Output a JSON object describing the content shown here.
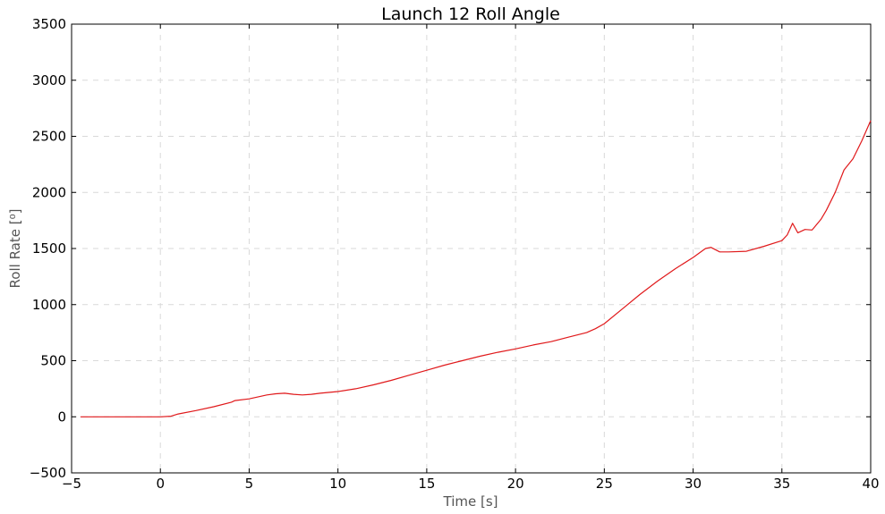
{
  "chart_data": {
    "type": "line",
    "title": "Launch 12 Roll Angle",
    "xlabel": "Time [s]",
    "ylabel": "Roll Rate [⁰]",
    "xlim": [
      -5,
      40
    ],
    "ylim": [
      -500,
      3500
    ],
    "xticks": [
      -5,
      0,
      5,
      10,
      15,
      20,
      25,
      30,
      35,
      40
    ],
    "yticks": [
      -500,
      0,
      500,
      1000,
      1500,
      2000,
      2500,
      3000,
      3500
    ],
    "ytick_labels": [
      "−500",
      "0",
      "500",
      "1000",
      "1500",
      "2000",
      "2500",
      "3000",
      "3500"
    ],
    "xtick_labels": [
      "−5",
      "0",
      "5",
      "10",
      "15",
      "20",
      "25",
      "30",
      "35",
      "40"
    ],
    "grid": true,
    "color": "#e0191b",
    "series": [
      {
        "x": [
          -4.5,
          -2,
          0,
          0.6,
          1,
          2,
          3,
          4,
          4.2,
          5,
          6,
          6.5,
          7,
          7.5,
          8,
          8.5,
          9,
          10,
          11,
          12,
          13,
          14,
          15,
          16,
          17,
          18,
          19,
          20,
          21,
          22,
          23,
          24,
          24.5,
          25,
          26,
          27,
          28,
          29,
          30,
          30.7,
          31,
          31.5,
          32,
          33,
          34,
          35,
          35.3,
          35.6,
          35.9,
          36.3,
          36.7,
          37.2,
          37.5,
          38,
          38.5,
          39,
          39.5,
          40
        ],
        "y": [
          0,
          0,
          0,
          5,
          25,
          55,
          90,
          130,
          145,
          160,
          195,
          205,
          210,
          200,
          195,
          200,
          210,
          225,
          250,
          285,
          325,
          370,
          415,
          460,
          500,
          540,
          575,
          605,
          640,
          670,
          710,
          750,
          785,
          830,
          960,
          1090,
          1210,
          1320,
          1420,
          1500,
          1510,
          1470,
          1470,
          1475,
          1520,
          1570,
          1620,
          1725,
          1640,
          1670,
          1665,
          1760,
          1840,
          2000,
          2200,
          2300,
          2460,
          2640
        ]
      }
    ]
  }
}
